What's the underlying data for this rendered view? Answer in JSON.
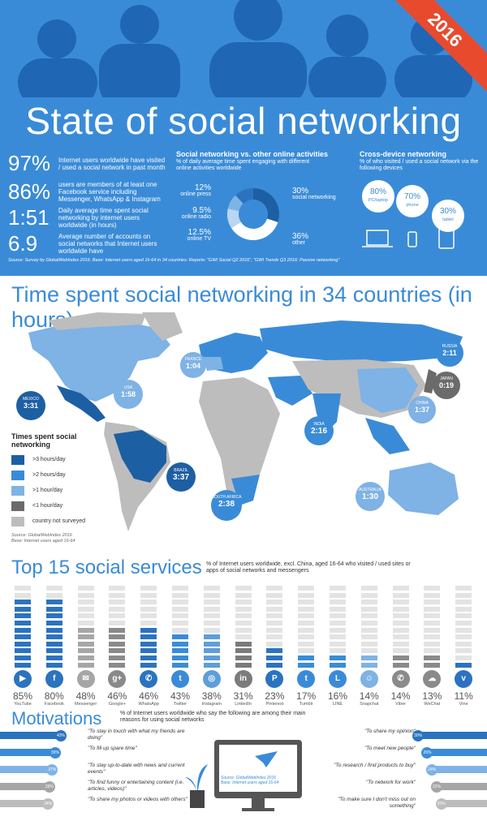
{
  "year_badge": "2016",
  "main_title": "State of social networking",
  "stats": [
    {
      "value": "97%",
      "text": "Internet users worldwide have visited / used a social network in past month"
    },
    {
      "value": "86%",
      "text": "users are members of at least one Facebook service including Messenger, WhatsApp & Instagram"
    },
    {
      "value": "1:51",
      "text": "Daily average time spent social networking by internet users worldwide (in hours)"
    },
    {
      "value": "6.9",
      "text": "Average number of accounts on social networks that Internet users worldwide have"
    }
  ],
  "activities": {
    "heading": "Social networking vs. other online activities",
    "sub": "% of daily average time spent engaging with different online activities worldwide",
    "slices": [
      {
        "pct": "30%",
        "label": "social networking",
        "value": 30,
        "color": "#1d5fa3"
      },
      {
        "pct": "36%",
        "label": "other",
        "value": 36,
        "color": "#ffffff"
      },
      {
        "pct": "12.5%",
        "label": "online TV",
        "value": 12.5,
        "color": "#b9d6f2"
      },
      {
        "pct": "9.5%",
        "label": "online radio",
        "value": 9.5,
        "color": "#7fb2e5"
      },
      {
        "pct": "12%",
        "label": "online press",
        "value": 12,
        "color": "#2b73bf"
      }
    ]
  },
  "devices": {
    "heading": "Cross-device networking",
    "sub": "% of who visited / used a social network via the following devices",
    "items": [
      {
        "pct": "80%",
        "label": "PC/laptop",
        "icon": "laptop-icon"
      },
      {
        "pct": "70%",
        "label": "phone",
        "icon": "phone-icon"
      },
      {
        "pct": "30%",
        "label": "tablet",
        "icon": "tablet-icon"
      }
    ]
  },
  "source1": "Source: Survey by GlobalWebIndex 2016. Base: Internet users aged 16-64 in 34 countries. Reports: \"GWI Social Q2 2016\", \"GWI Trends Q3 2016: Passive networking\"",
  "map": {
    "title": "Time spent social networking in 34 countries (in hours)",
    "pins": [
      {
        "country": "RUSSIA",
        "time": "2:11"
      },
      {
        "country": "FRANCE",
        "time": "1:04"
      },
      {
        "country": "USA",
        "time": "1:58"
      },
      {
        "country": "MEXICO",
        "time": "3:31"
      },
      {
        "country": "JAPAN",
        "time": "0:19"
      },
      {
        "country": "CHINA",
        "time": "1:37"
      },
      {
        "country": "INDIA",
        "time": "2:16"
      },
      {
        "country": "BRAZIL",
        "time": "3:37"
      },
      {
        "country": "SOUTH AFRICA",
        "time": "2:38"
      },
      {
        "country": "AUSTRALIA",
        "time": "1:30"
      }
    ],
    "legend_title": "Times spent social networking",
    "legend": [
      {
        "label": ">3 hours/day",
        "color": "#1d5fa3"
      },
      {
        "label": ">2 hours/day",
        "color": "#3a8bd7"
      },
      {
        "label": ">1 hour/day",
        "color": "#7fb2e5"
      },
      {
        "label": "<1 hour/day",
        "color": "#6b6b6b"
      },
      {
        "label": "country not surveyed",
        "color": "#bdbdbd"
      }
    ],
    "source": "Source: GlobalWebIndex 2016",
    "base": "Base: Internet users aged 16-64"
  },
  "services": {
    "title": "Top 15 social services",
    "sub": "% of Internet users worldwide, excl. China, aged 16-64 who visited / used sites or apps of social networks and messengers",
    "items": [
      {
        "name": "YouTube",
        "pct": "85%",
        "value": 85,
        "icon": "youtube-icon",
        "glyph": "▶",
        "color": "#2b73bf"
      },
      {
        "name": "Facebook",
        "pct": "80%",
        "value": 80,
        "icon": "facebook-icon",
        "glyph": "f",
        "color": "#2b73bf"
      },
      {
        "name": "Messenger",
        "pct": "48%",
        "value": 48,
        "icon": "messenger-icon",
        "glyph": "✉",
        "color": "#a6a6a6"
      },
      {
        "name": "Google+",
        "pct": "46%",
        "value": 46,
        "icon": "google-plus-icon",
        "glyph": "g+",
        "color": "#8a8a8a"
      },
      {
        "name": "WhatsApp",
        "pct": "46%",
        "value": 46,
        "icon": "whatsapp-icon",
        "glyph": "✆",
        "color": "#2b73bf"
      },
      {
        "name": "Twitter",
        "pct": "43%",
        "value": 43,
        "icon": "twitter-icon",
        "glyph": "t",
        "color": "#3a8bd7"
      },
      {
        "name": "Instagram",
        "pct": "38%",
        "value": 38,
        "icon": "instagram-icon",
        "glyph": "◎",
        "color": "#5e9ed9"
      },
      {
        "name": "LinkedIn",
        "pct": "31%",
        "value": 31,
        "icon": "linkedin-icon",
        "glyph": "in",
        "color": "#7b7b7b"
      },
      {
        "name": "Pinterest",
        "pct": "23%",
        "value": 23,
        "icon": "pinterest-icon",
        "glyph": "P",
        "color": "#2b73bf"
      },
      {
        "name": "Tumblr",
        "pct": "17%",
        "value": 17,
        "icon": "tumblr-icon",
        "glyph": "t",
        "color": "#3a8bd7"
      },
      {
        "name": "LINE",
        "pct": "16%",
        "value": 16,
        "icon": "line-icon",
        "glyph": "L",
        "color": "#3a8bd7"
      },
      {
        "name": "Snapchat",
        "pct": "14%",
        "value": 14,
        "icon": "snapchat-icon",
        "glyph": "☺",
        "color": "#7fb2e5"
      },
      {
        "name": "Viber",
        "pct": "14%",
        "value": 14,
        "icon": "viber-icon",
        "glyph": "✆",
        "color": "#8a8a8a"
      },
      {
        "name": "WeChat",
        "pct": "13%",
        "value": 13,
        "icon": "wechat-icon",
        "glyph": "☁",
        "color": "#8a8a8a"
      },
      {
        "name": "Vine",
        "pct": "11%",
        "value": 11,
        "icon": "vine-icon",
        "glyph": "v",
        "color": "#2b73bf"
      }
    ]
  },
  "motivations": {
    "title": "Motivations",
    "sub": "% of Internet users worldwide who say the following are among their main reasons for using social networks",
    "left": [
      {
        "text": "\"To stay in touch with what my friends are doing\"",
        "pct": "43%",
        "value": 43,
        "color": "#2b73bf"
      },
      {
        "text": "\"To fill up spare time\"",
        "pct": "39%",
        "value": 39,
        "color": "#3a8bd7"
      },
      {
        "text": "\"To stay up-to-date with news and current events\"",
        "pct": "37%",
        "value": 37,
        "color": "#7fb2e5"
      },
      {
        "text": "\"To find funny or entertaining content (i.e. articles, videos)\"",
        "pct": "35%",
        "value": 35,
        "color": "#a6a6a6"
      },
      {
        "text": "\"To share my photos or videos with others\"",
        "pct": "34%",
        "value": 34,
        "color": "#bdbdbd"
      }
    ],
    "right": [
      {
        "text": "\"To share my opinion\"",
        "pct": "30%",
        "value": 30,
        "color": "#2b73bf"
      },
      {
        "text": "\"To meet new people\"",
        "pct": "26%",
        "value": 26,
        "color": "#3a8bd7"
      },
      {
        "text": "\"To research / find products to buy\"",
        "pct": "24%",
        "value": 24,
        "color": "#7fb2e5"
      },
      {
        "text": "\"To network for work\"",
        "pct": "22%",
        "value": 22,
        "color": "#a6a6a6"
      },
      {
        "text": "\"To make sure I don't miss out on something\"",
        "pct": "20%",
        "value": 20,
        "color": "#bdbdbd"
      }
    ],
    "source": "Source: GlobalWebIndex 2016",
    "base": "Base: Internet users aged 16-64"
  }
}
